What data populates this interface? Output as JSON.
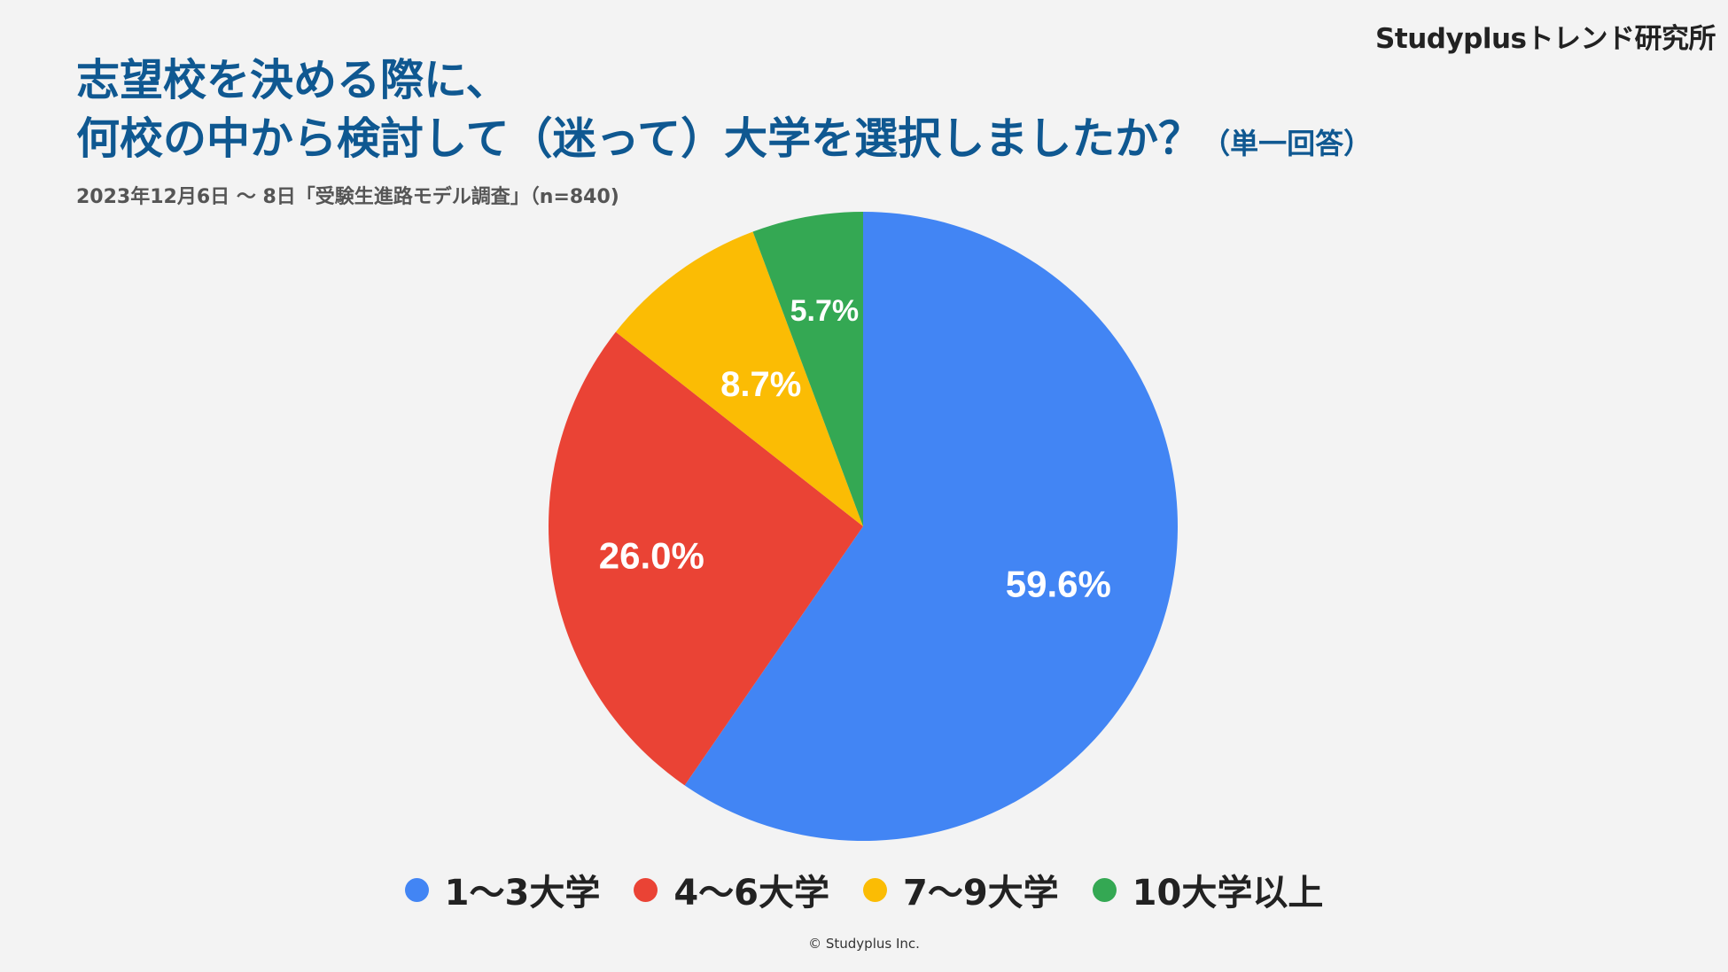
{
  "brand": "Studyplusトレンド研究所",
  "title": {
    "line1": "志望校を決める際に、",
    "line2": "何校の中から検討して（迷って）大学を選択しましたか？",
    "suffix": "（単一回答）"
  },
  "subtitle": "2023年12月6日 ～ 8日「受験生進路モデル調査」（n=840)",
  "copyright": "© Studyplus Inc.",
  "chart_data": {
    "type": "pie",
    "title": "志望校を決める際に、何校の中から検討して（迷って）大学を選択しましたか？",
    "legend_position": "bottom",
    "slices": [
      {
        "label": "1～3大学",
        "value": 59.6,
        "display": "59.6%",
        "color": "#4285f4"
      },
      {
        "label": "4～6大学",
        "value": 26.0,
        "display": "26.0%",
        "color": "#ea4335"
      },
      {
        "label": "7～9大学",
        "value": 8.7,
        "display": "8.7%",
        "color": "#fbbc04"
      },
      {
        "label": "10大学以上",
        "value": 5.7,
        "display": "5.7%",
        "color": "#34a853"
      }
    ]
  }
}
